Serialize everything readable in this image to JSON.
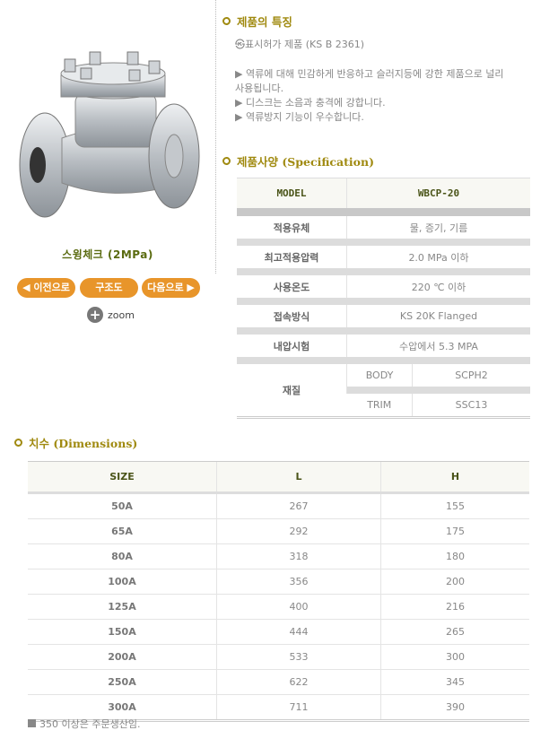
{
  "product": {
    "title": "스윙체크 (2MPa)",
    "image_alt": "swing check valve"
  },
  "nav": {
    "prev": "◀ 이전으로",
    "structure": "구조도",
    "next": "다음으로 ▶",
    "zoom": "zoom"
  },
  "features": {
    "heading": "제품의 특징",
    "ks_mark": "㉿",
    "ks_line": "표시허가 제품 (KS B 2361)",
    "items": [
      "▶  역류에 대해 민감하게 반응하고 슬러지등에 강한 제품으로 널리 사용됩니다.",
      "▶  디스크는 소음과 충격에 강합니다.",
      "▶  역류방지 기능이 우수합니다."
    ]
  },
  "spec": {
    "heading": "제품사양 (Specification)",
    "model_label": "MODEL",
    "model_value": "WBCP-20",
    "rows": [
      {
        "label": "적용유체",
        "value": "물, 증기, 기름"
      },
      {
        "label": "최고적용압력",
        "value": "2.0 MPa 이하"
      },
      {
        "label": "사용온도",
        "value": "220 ℃ 이하"
      },
      {
        "label": "접속방식",
        "value": "KS 20K Flanged"
      },
      {
        "label": "내압시험",
        "value": "수압에서 5.3 MPA"
      }
    ],
    "material": {
      "label": "재질",
      "body_label": "BODY",
      "body_value": "SCPH2",
      "trim_label": "TRIM",
      "trim_value": "SSC13"
    }
  },
  "dimensions": {
    "heading": "치수 (Dimensions)",
    "columns": [
      "SIZE",
      "L",
      "H"
    ],
    "rows": [
      [
        "50A",
        "267",
        "155"
      ],
      [
        "65A",
        "292",
        "175"
      ],
      [
        "80A",
        "318",
        "180"
      ],
      [
        "100A",
        "356",
        "200"
      ],
      [
        "125A",
        "400",
        "216"
      ],
      [
        "150A",
        "444",
        "265"
      ],
      [
        "200A",
        "533",
        "300"
      ],
      [
        "250A",
        "622",
        "345"
      ],
      [
        "300A",
        "711",
        "390"
      ]
    ],
    "note": "350 이상은 주문생산임."
  },
  "colors": {
    "accent": "#e8952a",
    "heading": "#a08a10",
    "title": "#5a6b10"
  }
}
